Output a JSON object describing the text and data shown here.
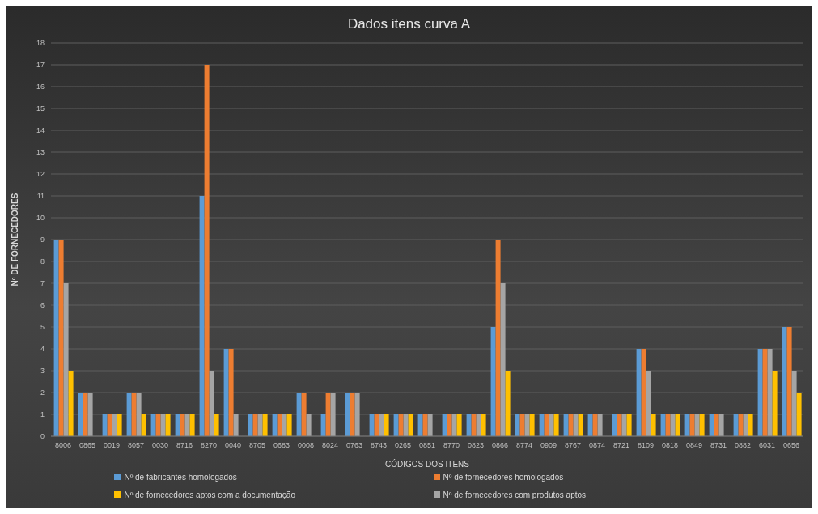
{
  "chart_data": {
    "type": "bar",
    "title": "Dados itens curva A",
    "xlabel": "CÓDIGOS DOS ITENS",
    "ylabel": "Nº DE FORNECEDORES",
    "categories": [
      "8006",
      "0865",
      "0019",
      "8057",
      "0030",
      "8716",
      "8270",
      "0040",
      "8705",
      "0683",
      "0008",
      "8024",
      "0763",
      "8743",
      "0265",
      "0851",
      "8770",
      "0823",
      "0866",
      "8774",
      "0909",
      "8767",
      "0874",
      "8721",
      "8109",
      "0818",
      "0849",
      "8731",
      "0882",
      "6031",
      "0656"
    ],
    "series": [
      {
        "name": "Nº  de fabricantes homologados",
        "color": "#5b9bd5",
        "values": [
          9,
          2,
          1,
          2,
          1,
          1,
          11,
          4,
          1,
          1,
          2,
          1,
          2,
          1,
          1,
          1,
          1,
          1,
          5,
          1,
          1,
          1,
          1,
          1,
          4,
          1,
          1,
          1,
          1,
          4,
          5
        ]
      },
      {
        "name": "Nº  de fornecedores homologados",
        "color": "#ed7d31",
        "values": [
          9,
          2,
          1,
          2,
          1,
          1,
          17,
          4,
          1,
          1,
          2,
          2,
          2,
          1,
          1,
          1,
          1,
          1,
          9,
          1,
          1,
          1,
          1,
          1,
          4,
          1,
          1,
          1,
          1,
          4,
          5
        ]
      },
      {
        "name": "Nº de fornecedores com produtos aptos",
        "color": "#a5a5a5",
        "values": [
          7,
          2,
          1,
          2,
          1,
          1,
          3,
          1,
          1,
          1,
          1,
          2,
          2,
          1,
          1,
          1,
          1,
          1,
          7,
          1,
          1,
          1,
          1,
          1,
          3,
          1,
          1,
          1,
          1,
          4,
          3
        ]
      },
      {
        "name": "Nº de fornecedores aptos com a documentação",
        "color": "#ffc000",
        "values": [
          3,
          0,
          1,
          1,
          1,
          1,
          1,
          0,
          1,
          1,
          0,
          0,
          0,
          1,
          1,
          0,
          1,
          1,
          3,
          1,
          1,
          1,
          0,
          1,
          1,
          1,
          1,
          0,
          1,
          3,
          2
        ]
      }
    ],
    "ylim": [
      0,
      18
    ],
    "yticks": [
      0,
      1,
      2,
      3,
      4,
      5,
      6,
      7,
      8,
      9,
      10,
      11,
      12,
      13,
      14,
      15,
      16,
      17,
      18
    ],
    "grid": "y",
    "legend": "bottom"
  }
}
